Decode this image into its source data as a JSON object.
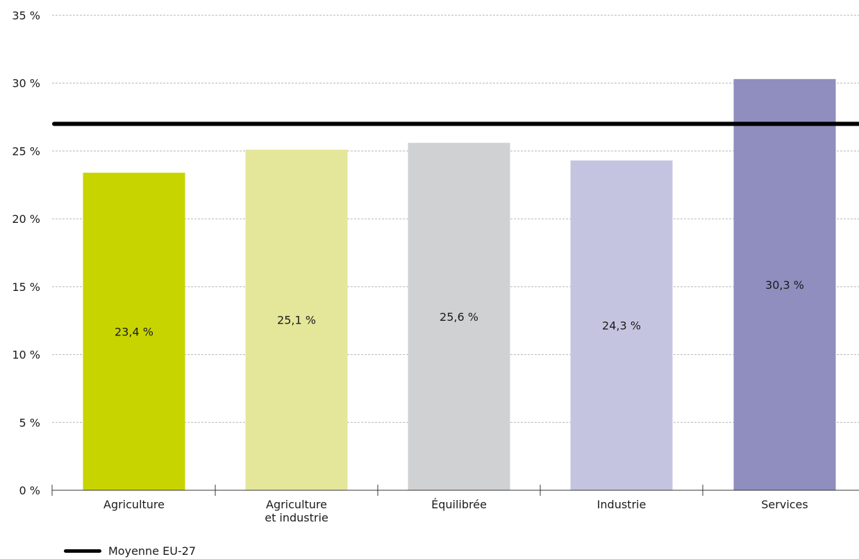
{
  "chart_data": {
    "type": "bar",
    "title": "",
    "xlabel": "",
    "ylabel": "",
    "categories": [
      [
        "Agriculture"
      ],
      [
        "Agriculture",
        "et industrie"
      ],
      [
        "Équilibrée"
      ],
      [
        "Industrie"
      ],
      [
        "Services"
      ]
    ],
    "values": [
      23.4,
      25.1,
      25.6,
      24.3,
      30.3
    ],
    "value_labels": [
      "23,4 %",
      "25,1 %",
      "25,6 %",
      "24,3 %",
      "30,3 %"
    ],
    "bar_colors": [
      "#c8d400",
      "#e4e79a",
      "#d0d1d3",
      "#c5c4e0",
      "#8f8ebf"
    ],
    "ylim": [
      0,
      35
    ],
    "yticks": [
      0,
      5,
      10,
      15,
      20,
      25,
      30,
      35
    ],
    "ytick_labels": [
      "0 %",
      "5 %",
      "10 %",
      "15 %",
      "20 %",
      "25 %",
      "30 %",
      "35 %"
    ],
    "grid": true,
    "reference_line": {
      "name": "Moyenne EU-27",
      "value": 27.0,
      "color": "#000000"
    },
    "legend": {
      "placement": "bottom-left",
      "entries": [
        "Moyenne EU-27"
      ]
    }
  }
}
